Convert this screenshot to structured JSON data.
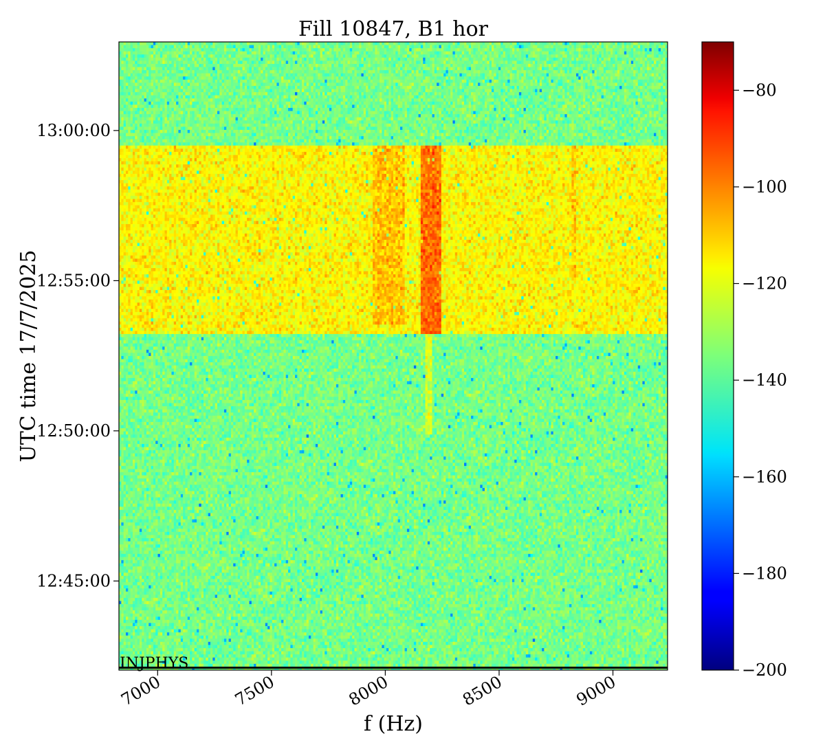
{
  "chart_data": {
    "type": "heatmap",
    "title": "Fill 10847, B1 hor",
    "xlabel": "f (Hz)",
    "ylabel": "UTC time 17/7/2025",
    "xlim": [
      6830,
      9240
    ],
    "x_ticks": [
      7000,
      7500,
      8000,
      8500,
      9000
    ],
    "x_tick_labels": [
      "7000",
      "7500",
      "8000",
      "8500",
      "9000"
    ],
    "y_ticks": [
      "13:00:00",
      "12:55:00",
      "12:50:00",
      "12:45:00"
    ],
    "ylim": [
      "12:42:02",
      "13:02:57"
    ],
    "colorbar": {
      "colormap": "jet",
      "range": [
        -200,
        -70
      ],
      "ticks": [
        -80,
        -100,
        -120,
        -140,
        -160,
        -180,
        -200
      ],
      "tick_labels": [
        "−80",
        "−100",
        "−120",
        "−140",
        "−160",
        "−180",
        "−200"
      ]
    },
    "background_level": -136,
    "high_power_interval": {
      "start": "12:53:15",
      "end": "12:59:33",
      "level": -118
    },
    "features": [
      {
        "f_low": 7940,
        "f_high": 8090,
        "start": "12:53:30",
        "end": "12:59:33",
        "level": -111
      },
      {
        "f_low": 8160,
        "f_high": 8250,
        "start": "12:53:15",
        "end": "12:59:33",
        "level": -100
      },
      {
        "f_low": 8180,
        "f_high": 8210,
        "start": "12:49:50",
        "end": "12:53:15",
        "level": -124
      },
      {
        "f_low": 8820,
        "f_high": 8840,
        "start": "12:55:00",
        "end": "12:59:33",
        "level": -112
      }
    ],
    "grid": false,
    "annotation": "INJPHYS"
  }
}
